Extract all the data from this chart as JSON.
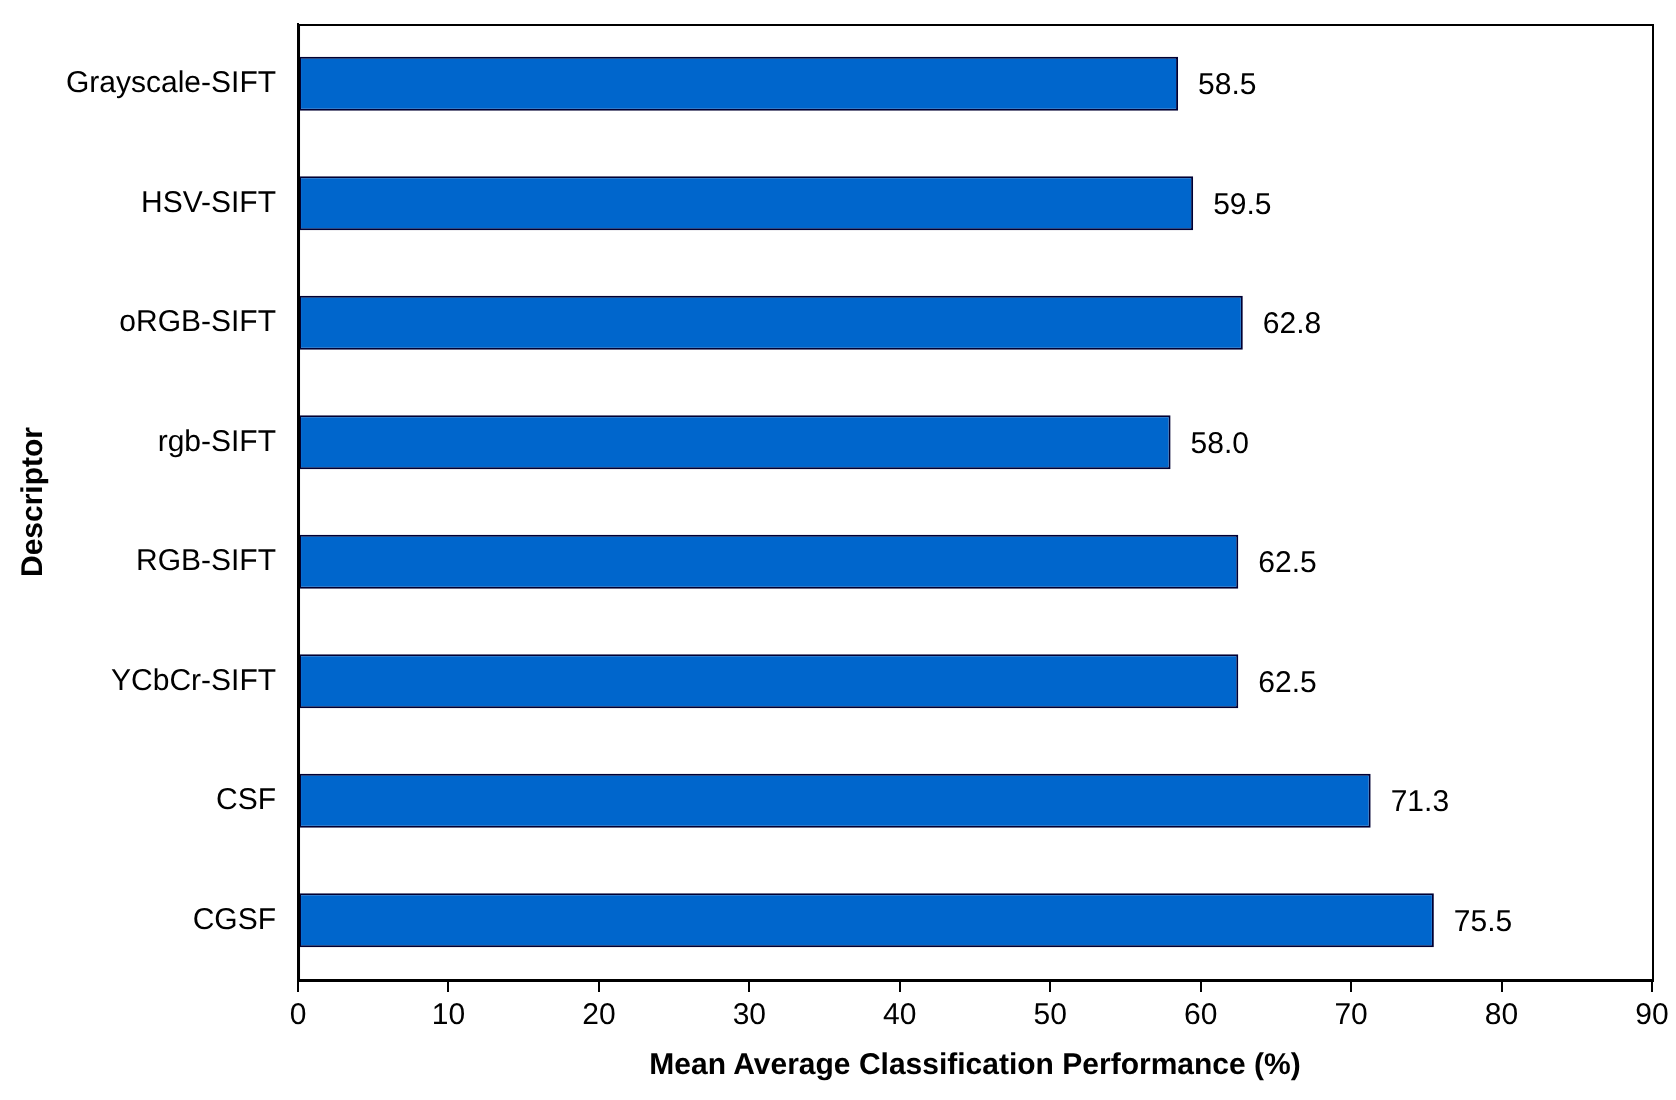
{
  "chart_data": {
    "type": "bar",
    "orientation": "horizontal",
    "xlabel": "Mean Average Classification Performance (%)",
    "ylabel": "Descriptor",
    "categories": [
      "Grayscale-SIFT",
      "HSV-SIFT",
      "oRGB-SIFT",
      "rgb-SIFT",
      "RGB-SIFT",
      "YCbCr-SIFT",
      "CSF",
      "CGSF"
    ],
    "values": [
      58.5,
      59.5,
      62.8,
      58.0,
      62.5,
      62.5,
      71.3,
      75.5
    ],
    "color": "#0066cc",
    "value_labels": [
      "58.5",
      "59.5",
      "62.8",
      "58.0",
      "62.5",
      "62.5",
      "71.3",
      "75.5"
    ],
    "xlim": [
      0,
      90
    ],
    "xticks": [
      0,
      10,
      20,
      30,
      40,
      50,
      60,
      70,
      80,
      90
    ],
    "grid": false,
    "legend": false
  }
}
